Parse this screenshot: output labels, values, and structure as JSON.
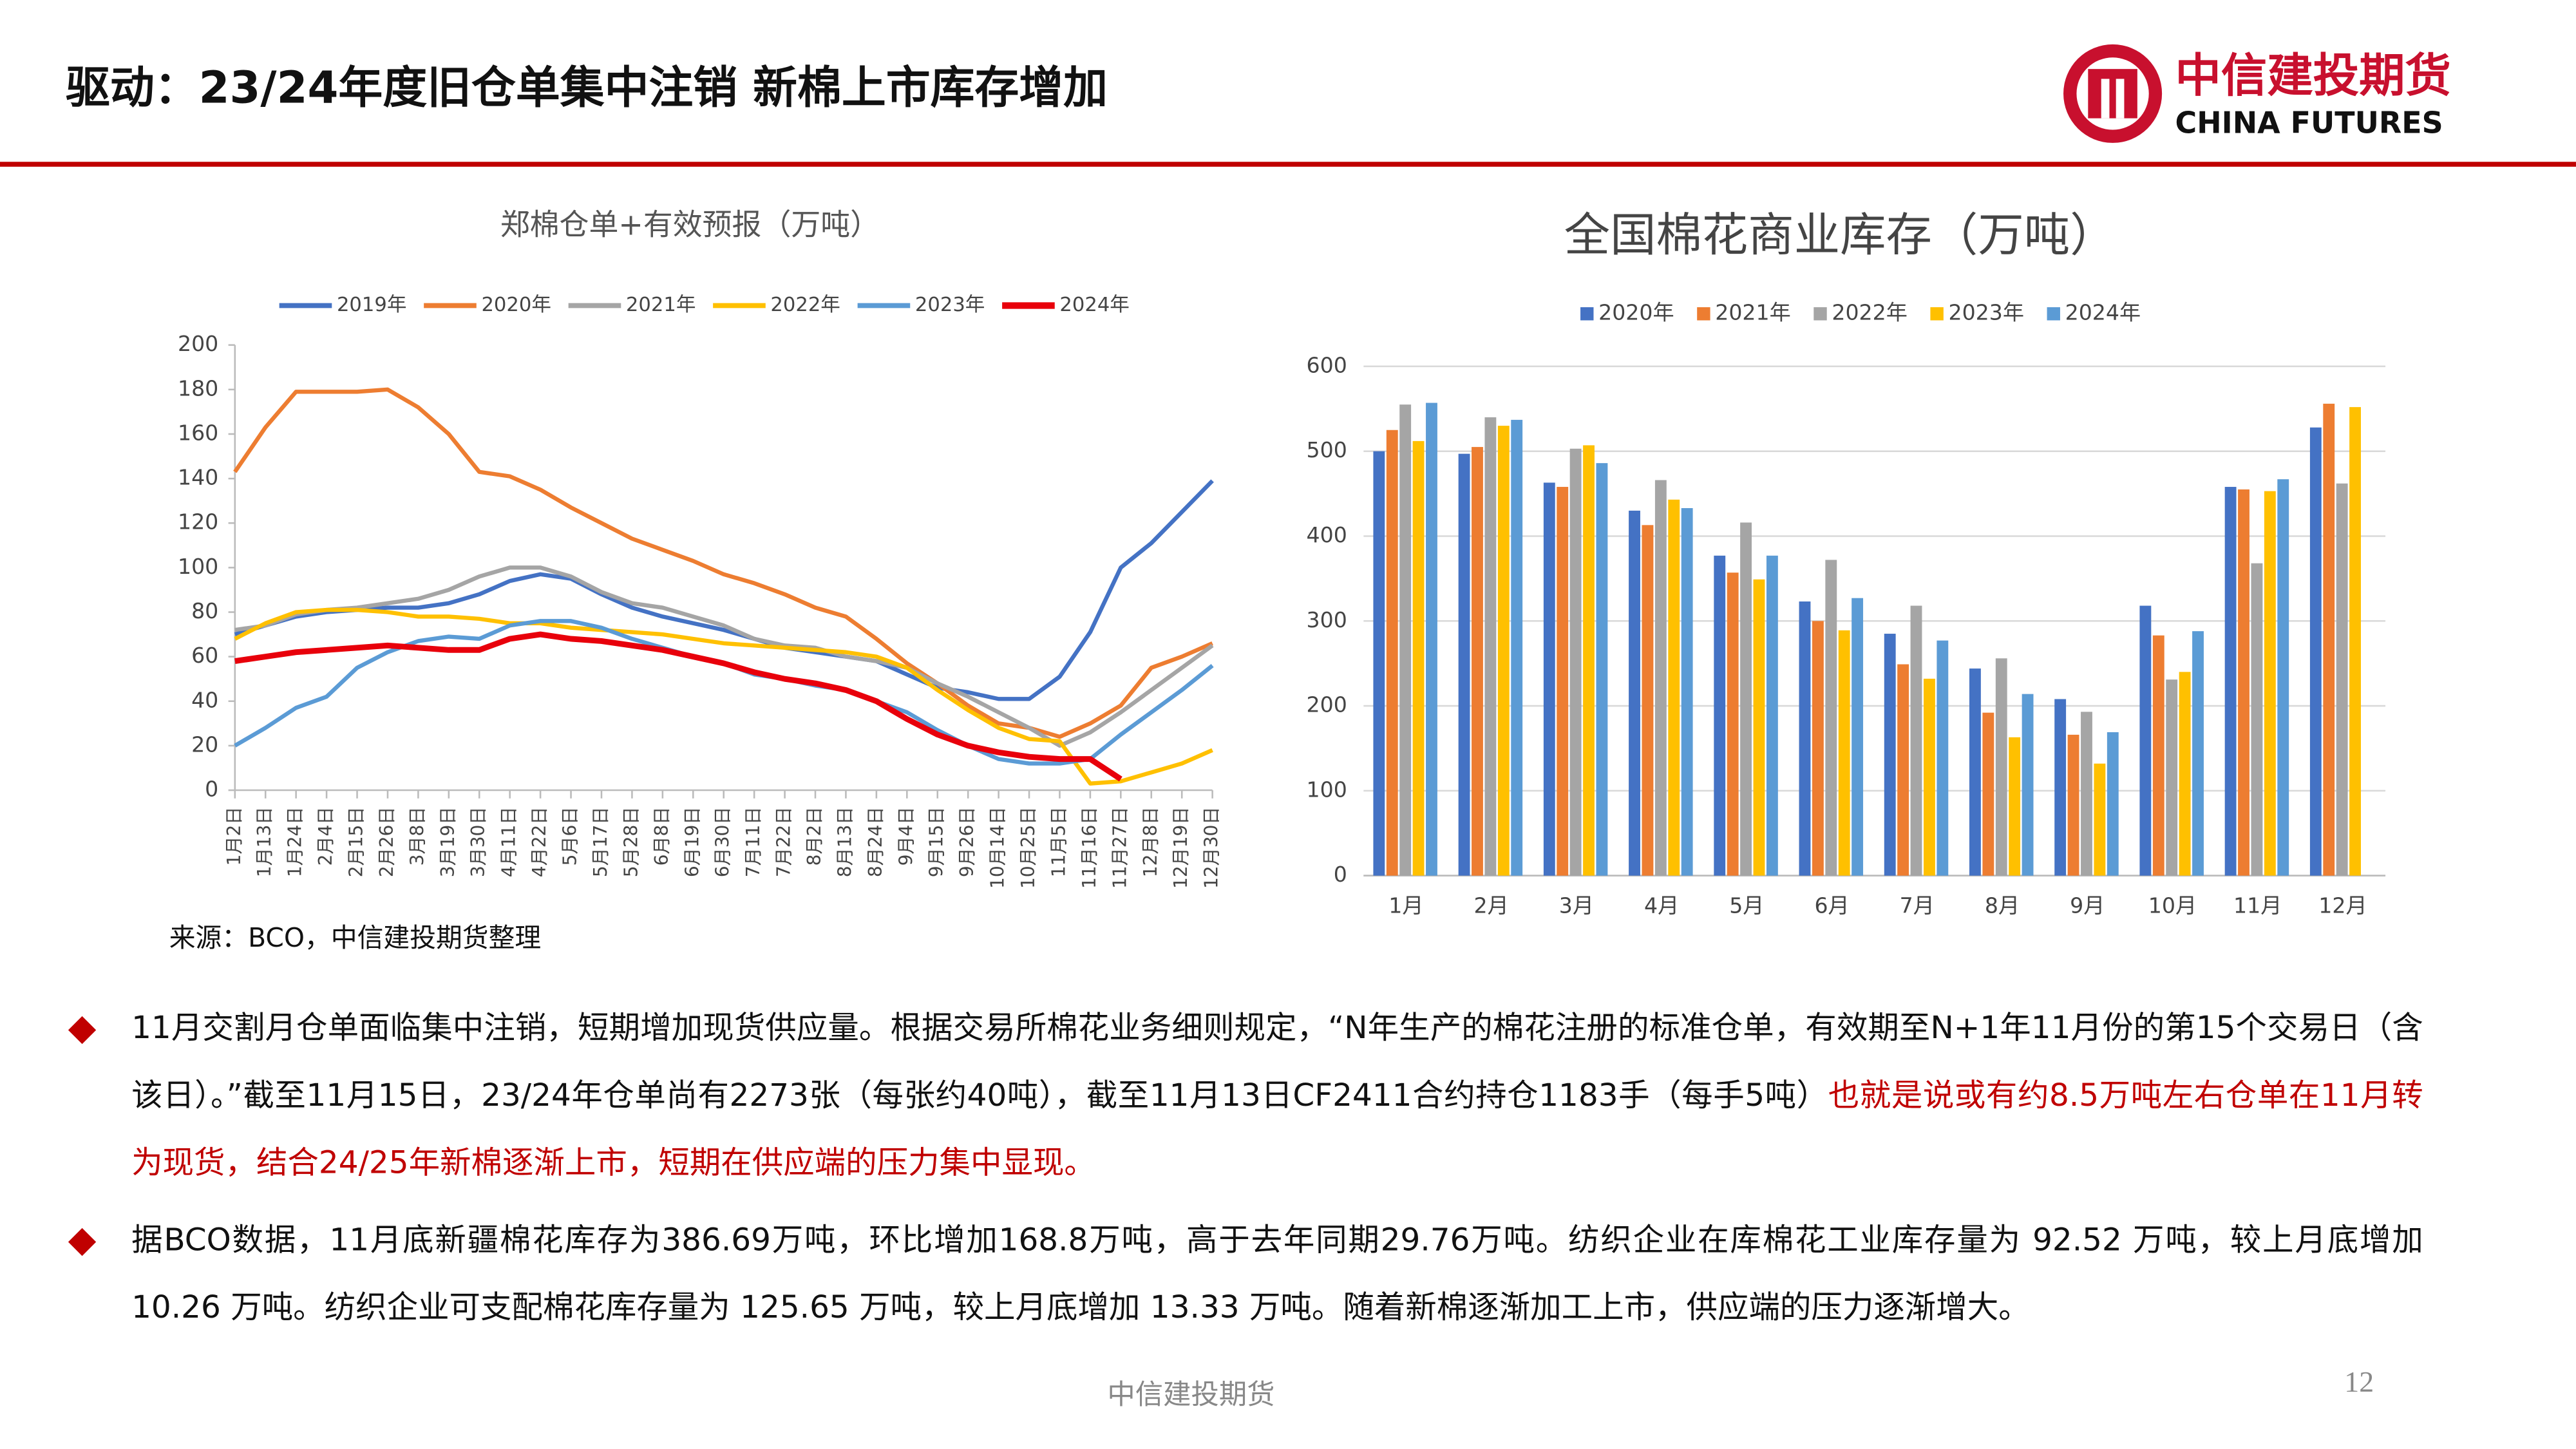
{
  "header": {
    "title": "驱动：23/24年度旧仓单集中注销 新棉上市库存增加",
    "logo_cn": "中信建投期货",
    "logo_en": "CHINA FUTURES"
  },
  "chart_data": [
    {
      "type": "line",
      "title": "郑棉仓单+有效预报（万吨）",
      "categories": [
        "1月2日",
        "1月13日",
        "1月24日",
        "2月4日",
        "2月15日",
        "2月26日",
        "3月8日",
        "3月19日",
        "3月30日",
        "4月11日",
        "4月22日",
        "5月6日",
        "5月17日",
        "5月28日",
        "6月8日",
        "6月19日",
        "6月30日",
        "7月11日",
        "7月22日",
        "8月2日",
        "8月13日",
        "8月24日",
        "9月4日",
        "9月15日",
        "9月26日",
        "10月14日",
        "10月25日",
        "11月5日",
        "11月16日",
        "11月27日",
        "12月8日",
        "12月19日",
        "12月30日"
      ],
      "series": [
        {
          "name": "2019年",
          "color": "#4472c4",
          "values": [
            70,
            74,
            78,
            80,
            81,
            82,
            82,
            84,
            88,
            94,
            97,
            95,
            88,
            82,
            78,
            75,
            72,
            68,
            64,
            62,
            60,
            58,
            52,
            46,
            44,
            41,
            41,
            51,
            71,
            100,
            111,
            125,
            139
          ]
        },
        {
          "name": "2020年",
          "color": "#ed7d31",
          "values": [
            143,
            163,
            179,
            179,
            179,
            180,
            172,
            160,
            143,
            141,
            135,
            127,
            120,
            113,
            108,
            103,
            97,
            93,
            88,
            82,
            78,
            68,
            57,
            48,
            38,
            30,
            28,
            24,
            30,
            38,
            55,
            60,
            66
          ]
        },
        {
          "name": "2021年",
          "color": "#a5a5a5",
          "values": [
            72,
            74,
            79,
            81,
            82,
            84,
            86,
            90,
            96,
            100,
            100,
            96,
            89,
            84,
            82,
            78,
            74,
            68,
            65,
            64,
            60,
            58,
            55,
            48,
            42,
            35,
            28,
            20,
            26,
            35,
            45,
            55,
            65
          ]
        },
        {
          "name": "2022年",
          "color": "#ffc000",
          "values": [
            68,
            75,
            80,
            81,
            81,
            80,
            78,
            78,
            77,
            75,
            75,
            73,
            72,
            71,
            70,
            68,
            66,
            65,
            64,
            63,
            62,
            60,
            55,
            45,
            36,
            28,
            23,
            22,
            3,
            4,
            8,
            12,
            18
          ]
        },
        {
          "name": "2023年",
          "color": "#5b9bd5",
          "values": [
            20,
            28,
            37,
            42,
            55,
            62,
            67,
            69,
            68,
            74,
            76,
            76,
            73,
            68,
            64,
            60,
            57,
            52,
            50,
            47,
            45,
            40,
            35,
            27,
            20,
            14,
            12,
            12,
            14,
            25,
            35,
            45,
            56
          ]
        },
        {
          "name": "2024年",
          "color": "#e8000b",
          "values": [
            58,
            60,
            62,
            63,
            64,
            65,
            64,
            63,
            63,
            68,
            70,
            68,
            67,
            65,
            63,
            60,
            57,
            53,
            50,
            48,
            45,
            40,
            32,
            25,
            20,
            17,
            15,
            14,
            14,
            5,
            null,
            null,
            null
          ]
        }
      ],
      "ylim": [
        0,
        200
      ],
      "yticks": [
        0,
        20,
        40,
        60,
        80,
        100,
        120,
        140,
        160,
        180,
        200
      ],
      "grid": false
    },
    {
      "type": "bar",
      "title": "全国棉花商业库存（万吨）",
      "categories": [
        "1月",
        "2月",
        "3月",
        "4月",
        "5月",
        "6月",
        "7月",
        "8月",
        "9月",
        "10月",
        "11月",
        "12月"
      ],
      "series": [
        {
          "name": "2020年",
          "color": "#4472c4",
          "values": [
            500,
            497,
            463,
            430,
            377,
            323,
            285,
            244,
            208,
            318,
            458,
            528
          ]
        },
        {
          "name": "2021年",
          "color": "#ed7d31",
          "values": [
            525,
            505,
            458,
            413,
            357,
            300,
            249,
            192,
            166,
            283,
            455,
            556
          ]
        },
        {
          "name": "2022年",
          "color": "#a5a5a5",
          "values": [
            555,
            540,
            503,
            466,
            416,
            372,
            318,
            256,
            193,
            231,
            368,
            462
          ]
        },
        {
          "name": "2023年",
          "color": "#ffc000",
          "values": [
            512,
            530,
            507,
            443,
            349,
            289,
            232,
            163,
            132,
            240,
            453,
            552
          ]
        },
        {
          "name": "2024年",
          "color": "#5b9bd5",
          "values": [
            557,
            537,
            486,
            433,
            377,
            327,
            277,
            214,
            169,
            288,
            467,
            null
          ]
        }
      ],
      "ylim": [
        0,
        600
      ],
      "yticks": [
        0,
        100,
        200,
        300,
        400,
        500,
        600
      ],
      "grid": true
    }
  ],
  "source": "来源：BCO，中信建投期货整理",
  "bullets": [
    [
      "11月交割月仓单面临集中注销，短期增加现货供应量。根据交易所棉花业务细则规定，“N年生产的棉花注册的标准仓单，有效期至N+1年11月份的第15个交易日（含该日）。”截至11月15日，23/24年仓单尚有2273张（每张约40吨），截至11月13日CF2411合约持仓1183手（每手5吨）",
      "也就是说或有约8.5万吨左右仓单在11月转为现货，结合24/25年新棉逐渐上市，短期在供应端的压力集中显现。"
    ],
    [
      "据BCO数据，11月底新疆棉花库存为386.69万吨，环比增加168.8万吨，高于去年同期29.76万吨。纺织企业在库棉花工业库存量为 92.52 万吨，较上月底增加 10.26 万吨。纺织企业可支配棉花库存量为 125.65 万吨，较上月底增加 13.33 万吨。随着新棉逐渐加工上市，供应端的压力逐渐增大。"
    ]
  ],
  "footer": {
    "brand": "中信建投期货",
    "page": "12"
  }
}
